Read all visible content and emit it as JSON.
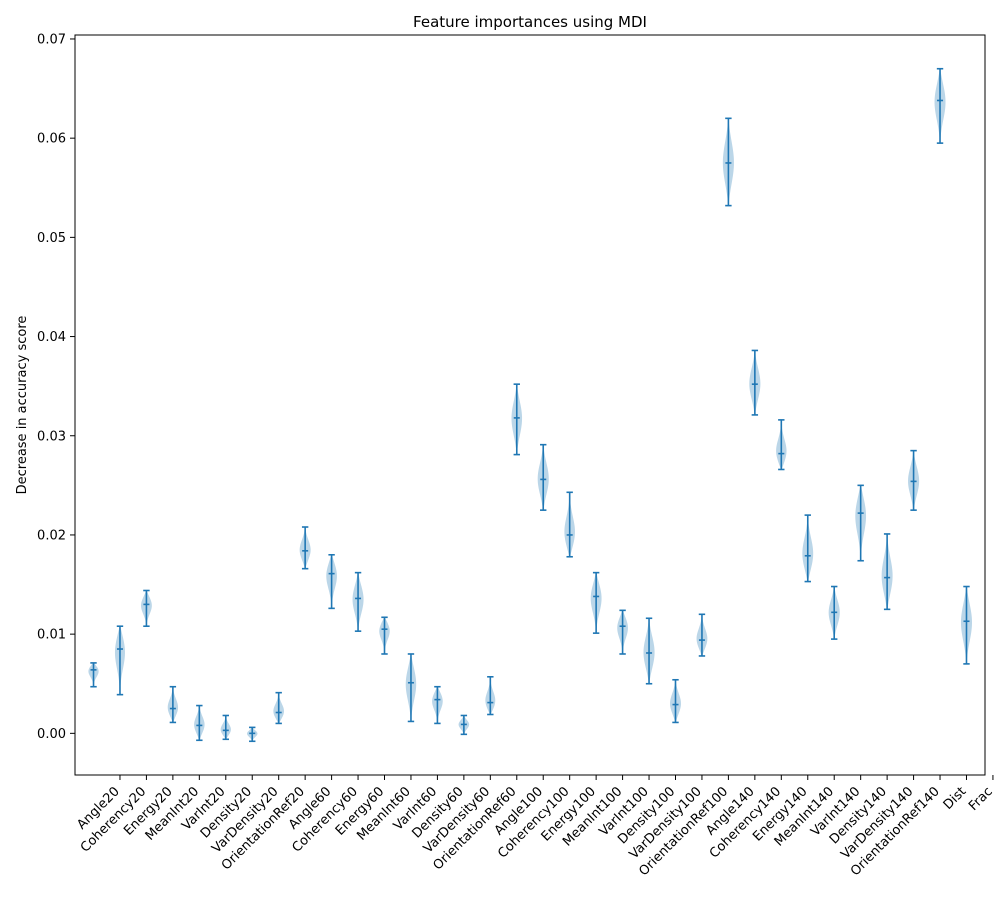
{
  "chart_data": {
    "type": "violin",
    "title": "Feature importances using MDI",
    "xlabel": "",
    "ylabel": "Decrease in accuracy score",
    "ylim": [
      -0.0042,
      0.0704
    ],
    "yticks": [
      "0.00",
      "0.01",
      "0.02",
      "0.03",
      "0.04",
      "0.05",
      "0.06",
      "0.07"
    ],
    "ytick_values": [
      0,
      0.01,
      0.02,
      0.03,
      0.04,
      0.05,
      0.06,
      0.07
    ],
    "grid": false,
    "colors": {
      "line": "#1f77b4",
      "fill": "#1f77b4",
      "fill_opacity": 0.3
    },
    "tick_labels": [
      "Angle20",
      "Coherency20",
      "Energy20",
      "MeanInt20",
      "VarInt20",
      "Density20",
      "VarDensity20",
      "OrientationRef20",
      "Angle60",
      "Coherency60",
      "Energy60",
      "MeanInt60",
      "VarInt60",
      "Density60",
      "VarDensity60",
      "OrientationRef60",
      "Angle100",
      "Coherency100",
      "Energy100",
      "MeanInt100",
      "VarInt100",
      "Density100",
      "VarDensity100",
      "OrientationRef100",
      "Angle140",
      "Coherency140",
      "Energy140",
      "MeanInt140",
      "VarInt140",
      "Density140",
      "VarDensity140",
      "OrientationRef140",
      "Dist",
      "Frac"
    ],
    "violins": [
      {
        "min": 0.0047,
        "max": 0.0071,
        "median": 0.0064,
        "width": 0.42
      },
      {
        "min": 0.0039,
        "max": 0.0108,
        "median": 0.0085,
        "width": 0.4
      },
      {
        "min": 0.0108,
        "max": 0.0144,
        "median": 0.013,
        "width": 0.42
      },
      {
        "min": 0.0011,
        "max": 0.0047,
        "median": 0.0025,
        "width": 0.4
      },
      {
        "min": -0.0007,
        "max": 0.0028,
        "median": 0.0008,
        "width": 0.4
      },
      {
        "min": -0.0006,
        "max": 0.0018,
        "median": 0.0003,
        "width": 0.4
      },
      {
        "min": -0.0008,
        "max": 0.0006,
        "median": 0.0,
        "width": 0.4
      },
      {
        "min": 0.001,
        "max": 0.0041,
        "median": 0.0021,
        "width": 0.42
      },
      {
        "min": 0.0166,
        "max": 0.0208,
        "median": 0.0184,
        "width": 0.42
      },
      {
        "min": 0.0126,
        "max": 0.018,
        "median": 0.0161,
        "width": 0.42
      },
      {
        "min": 0.0103,
        "max": 0.0162,
        "median": 0.0136,
        "width": 0.42
      },
      {
        "min": 0.008,
        "max": 0.0117,
        "median": 0.0105,
        "width": 0.42
      },
      {
        "min": 0.0012,
        "max": 0.008,
        "median": 0.0051,
        "width": 0.4
      },
      {
        "min": 0.001,
        "max": 0.0047,
        "median": 0.0034,
        "width": 0.42
      },
      {
        "min": -0.0001,
        "max": 0.0018,
        "median": 0.0009,
        "width": 0.4
      },
      {
        "min": 0.0019,
        "max": 0.0057,
        "median": 0.0031,
        "width": 0.4
      },
      {
        "min": 0.0281,
        "max": 0.0352,
        "median": 0.0318,
        "width": 0.4
      },
      {
        "min": 0.0225,
        "max": 0.0291,
        "median": 0.0256,
        "width": 0.42
      },
      {
        "min": 0.0178,
        "max": 0.0243,
        "median": 0.02,
        "width": 0.42
      },
      {
        "min": 0.0101,
        "max": 0.0162,
        "median": 0.0138,
        "width": 0.42
      },
      {
        "min": 0.008,
        "max": 0.0124,
        "median": 0.0108,
        "width": 0.42
      },
      {
        "min": 0.005,
        "max": 0.0116,
        "median": 0.0081,
        "width": 0.42
      },
      {
        "min": 0.0011,
        "max": 0.0054,
        "median": 0.0029,
        "width": 0.42
      },
      {
        "min": 0.0078,
        "max": 0.012,
        "median": 0.0094,
        "width": 0.42
      },
      {
        "min": 0.0532,
        "max": 0.062,
        "median": 0.0575,
        "width": 0.42
      },
      {
        "min": 0.0321,
        "max": 0.0386,
        "median": 0.0352,
        "width": 0.42
      },
      {
        "min": 0.0266,
        "max": 0.0316,
        "median": 0.0282,
        "width": 0.42
      },
      {
        "min": 0.0153,
        "max": 0.022,
        "median": 0.0179,
        "width": 0.42
      },
      {
        "min": 0.0095,
        "max": 0.0148,
        "median": 0.0122,
        "width": 0.42
      },
      {
        "min": 0.0174,
        "max": 0.025,
        "median": 0.0222,
        "width": 0.42
      },
      {
        "min": 0.0125,
        "max": 0.0201,
        "median": 0.0157,
        "width": 0.42
      },
      {
        "min": 0.0225,
        "max": 0.0285,
        "median": 0.0254,
        "width": 0.42
      },
      {
        "min": 0.0595,
        "max": 0.067,
        "median": 0.0638,
        "width": 0.42
      },
      {
        "min": 0.007,
        "max": 0.0148,
        "median": 0.0113,
        "width": 0.42
      }
    ]
  }
}
